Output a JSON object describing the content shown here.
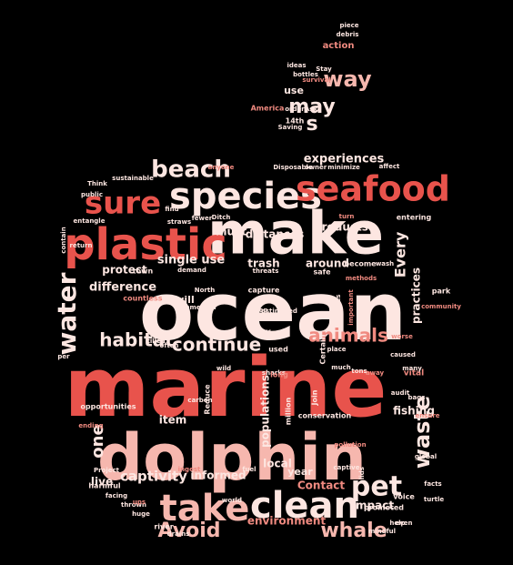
{
  "palette": {
    "background": "#000000",
    "red": "#e8534c",
    "salmon": "#f08a80",
    "pink": "#f6b7ae",
    "light": "#fde6e1"
  },
  "words": [
    {
      "text": "ocean",
      "color": "light"
    },
    {
      "text": "marine",
      "color": "red"
    },
    {
      "text": "dolphin",
      "color": "pink"
    },
    {
      "text": "make",
      "color": "light"
    },
    {
      "text": "plastic",
      "color": "red"
    },
    {
      "text": "species",
      "color": "light"
    },
    {
      "text": "seafood",
      "color": "red"
    },
    {
      "text": "take",
      "color": "pink"
    },
    {
      "text": "clean",
      "color": "light"
    },
    {
      "text": "pet",
      "color": "light"
    },
    {
      "text": "sure",
      "color": "red"
    },
    {
      "text": "beach",
      "color": "light"
    },
    {
      "text": "water",
      "color": "light"
    },
    {
      "text": "habitat",
      "color": "light"
    },
    {
      "text": "animals",
      "color": "salmon"
    },
    {
      "text": "continue",
      "color": "light"
    },
    {
      "text": "whale",
      "color": "pink"
    },
    {
      "text": "Avoid",
      "color": "pink"
    },
    {
      "text": "waste",
      "color": "light"
    },
    {
      "text": "way",
      "color": "pink"
    },
    {
      "text": "may",
      "color": "light"
    },
    {
      "text": "s",
      "color": "light"
    },
    {
      "text": "one",
      "color": "light"
    },
    {
      "text": "captivity",
      "color": "light"
    },
    {
      "text": "Every",
      "color": "light"
    },
    {
      "text": "experiences",
      "color": "light"
    },
    {
      "text": "difference",
      "color": "light"
    },
    {
      "text": "single use",
      "color": "light"
    },
    {
      "text": "trash",
      "color": "light"
    },
    {
      "text": "around",
      "color": "light"
    },
    {
      "text": "products",
      "color": "light"
    },
    {
      "text": "distances",
      "color": "light"
    },
    {
      "text": "must",
      "color": "light"
    },
    {
      "text": "protect",
      "color": "light"
    },
    {
      "text": "live",
      "color": "light"
    },
    {
      "text": "populations",
      "color": "light"
    },
    {
      "text": "informed",
      "color": "light"
    },
    {
      "text": "local",
      "color": "light"
    },
    {
      "text": "item",
      "color": "light"
    },
    {
      "text": "fishing",
      "color": "light"
    },
    {
      "text": "impact",
      "color": "light"
    },
    {
      "text": "Contact",
      "color": "salmon"
    },
    {
      "text": "year",
      "color": "light"
    },
    {
      "text": "environment",
      "color": "salmon"
    },
    {
      "text": "practices",
      "color": "light"
    },
    {
      "text": "will",
      "color": "light"
    },
    {
      "text": "action",
      "color": "salmon"
    },
    {
      "text": "use",
      "color": "light"
    },
    {
      "text": "Stay",
      "color": "light"
    },
    {
      "text": "sustainable",
      "color": "light"
    },
    {
      "text": "opportunities",
      "color": "light"
    },
    {
      "text": "harmful",
      "color": "light"
    },
    {
      "text": "conservation",
      "color": "light"
    },
    {
      "text": "million",
      "color": "light"
    },
    {
      "text": "Join",
      "color": "light"
    },
    {
      "text": "vital",
      "color": "salmon"
    },
    {
      "text": "park",
      "color": "light"
    },
    {
      "text": "community",
      "color": "salmon"
    },
    {
      "text": "promoted",
      "color": "light"
    },
    {
      "text": "facts",
      "color": "light"
    },
    {
      "text": "turtle",
      "color": "light"
    },
    {
      "text": "voice",
      "color": "light"
    },
    {
      "text": "world",
      "color": "light"
    },
    {
      "text": "river",
      "color": "light"
    },
    {
      "text": "drains",
      "color": "light"
    },
    {
      "text": "huge",
      "color": "light"
    },
    {
      "text": "thrown",
      "color": "light"
    },
    {
      "text": "sharks",
      "color": "light"
    },
    {
      "text": "Reduce",
      "color": "light"
    },
    {
      "text": "carbon",
      "color": "light"
    },
    {
      "text": "wild",
      "color": "light"
    },
    {
      "text": "killed",
      "color": "light"
    },
    {
      "text": "often",
      "color": "light"
    },
    {
      "text": "life",
      "color": "light"
    },
    {
      "text": "place",
      "color": "light"
    },
    {
      "text": "used",
      "color": "light"
    },
    {
      "text": "long",
      "color": "salmon"
    },
    {
      "text": "keep",
      "color": "light"
    },
    {
      "text": "commercial",
      "color": "light"
    },
    {
      "text": "capture",
      "color": "light"
    },
    {
      "text": "estimated",
      "color": "light"
    },
    {
      "text": "countless",
      "color": "salmon"
    },
    {
      "text": "town",
      "color": "light"
    },
    {
      "text": "safe",
      "color": "light"
    },
    {
      "text": "become",
      "color": "light"
    },
    {
      "text": "wash",
      "color": "light"
    },
    {
      "text": "methods",
      "color": "salmon"
    },
    {
      "text": "entering",
      "color": "light"
    },
    {
      "text": "tons",
      "color": "light"
    },
    {
      "text": "many",
      "color": "light"
    },
    {
      "text": "global",
      "color": "light"
    },
    {
      "text": "even",
      "color": "light"
    },
    {
      "text": "help",
      "color": "light"
    },
    {
      "text": "mindful",
      "color": "light"
    },
    {
      "text": "caused",
      "color": "light"
    },
    {
      "text": "ensure",
      "color": "salmon"
    },
    {
      "text": "bags",
      "color": "light"
    },
    {
      "text": "worse",
      "color": "salmon"
    },
    {
      "text": "away",
      "color": "salmon"
    },
    {
      "text": "much",
      "color": "light"
    },
    {
      "text": "audit",
      "color": "light"
    },
    {
      "text": "Certain",
      "color": "light"
    },
    {
      "text": "believes",
      "color": "light"
    },
    {
      "text": "important",
      "color": "salmon"
    },
    {
      "text": "anyone",
      "color": "salmon"
    },
    {
      "text": "Disposable",
      "color": "light"
    },
    {
      "text": "owner",
      "color": "light"
    },
    {
      "text": "minimize",
      "color": "light"
    },
    {
      "text": "affect",
      "color": "light"
    },
    {
      "text": "straws",
      "color": "light"
    },
    {
      "text": "fewer",
      "color": "light"
    },
    {
      "text": "find",
      "color": "light"
    },
    {
      "text": "public",
      "color": "light"
    },
    {
      "text": "entangle",
      "color": "light"
    },
    {
      "text": "demand",
      "color": "light"
    },
    {
      "text": "threats",
      "color": "light"
    },
    {
      "text": "America",
      "color": "salmon"
    },
    {
      "text": "order",
      "color": "light"
    },
    {
      "text": "Ask",
      "color": "light"
    },
    {
      "text": "14th",
      "color": "light"
    },
    {
      "text": "Saving",
      "color": "light"
    },
    {
      "text": "survival",
      "color": "salmon"
    },
    {
      "text": "bottles",
      "color": "light"
    },
    {
      "text": "ideas",
      "color": "light"
    },
    {
      "text": "piece",
      "color": "light"
    },
    {
      "text": "debris",
      "color": "light"
    },
    {
      "text": "Ditch",
      "color": "light"
    },
    {
      "text": "ingest",
      "color": "salmon"
    },
    {
      "text": "ups",
      "color": "salmon"
    },
    {
      "text": "facing",
      "color": "light"
    },
    {
      "text": "Project",
      "color": "light"
    },
    {
      "text": "ending",
      "color": "salmon"
    },
    {
      "text": "return",
      "color": "light"
    },
    {
      "text": "North",
      "color": "light"
    },
    {
      "text": "Think",
      "color": "light"
    },
    {
      "text": "lids",
      "color": "light"
    },
    {
      "text": "captive",
      "color": "light"
    },
    {
      "text": "fuel",
      "color": "light"
    },
    {
      "text": "pollution",
      "color": "salmon"
    },
    {
      "text": "contain",
      "color": "light"
    },
    {
      "text": "turn",
      "color": "salmon"
    },
    {
      "text": "per",
      "color": "light"
    },
    {
      "text": "Cleanups",
      "color": "salmon"
    },
    {
      "text": "currently",
      "color": "salmon"
    },
    {
      "text": "know",
      "color": "light"
    }
  ]
}
